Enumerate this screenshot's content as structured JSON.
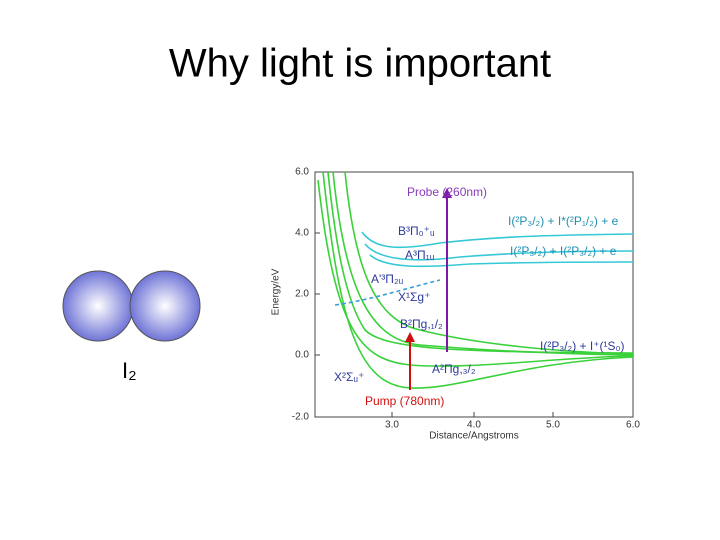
{
  "title": "Why light is important",
  "molecule": {
    "label": "I₂"
  },
  "figure": {
    "y_label": "Energy/eV",
    "x_label": "Distance/Angstroms",
    "y_ticks": [
      "6.0",
      "4.0",
      "2.0",
      "0.0",
      "-2.0"
    ],
    "x_ticks": [
      "3.0",
      "4.0",
      "5.0",
      "6.0"
    ],
    "labels": [
      "Probe (260nm)",
      "I(²P₃/₂) + I*(²P₁/₂) + e",
      "B³Π₀⁺ᵤ",
      "I(²P₃/₂) + I(²P₃/₂) + e",
      "A³Π₁ᵤ",
      "A'³Π₂ᵤ",
      "X¹Σg⁺",
      "B²Πg,₁/₂",
      "I(²P₃/₂) + I⁺(¹S₀)",
      "A²Πg,₃/₂",
      "X²Σᵤ⁺",
      "Pump (780nm)"
    ]
  }
}
